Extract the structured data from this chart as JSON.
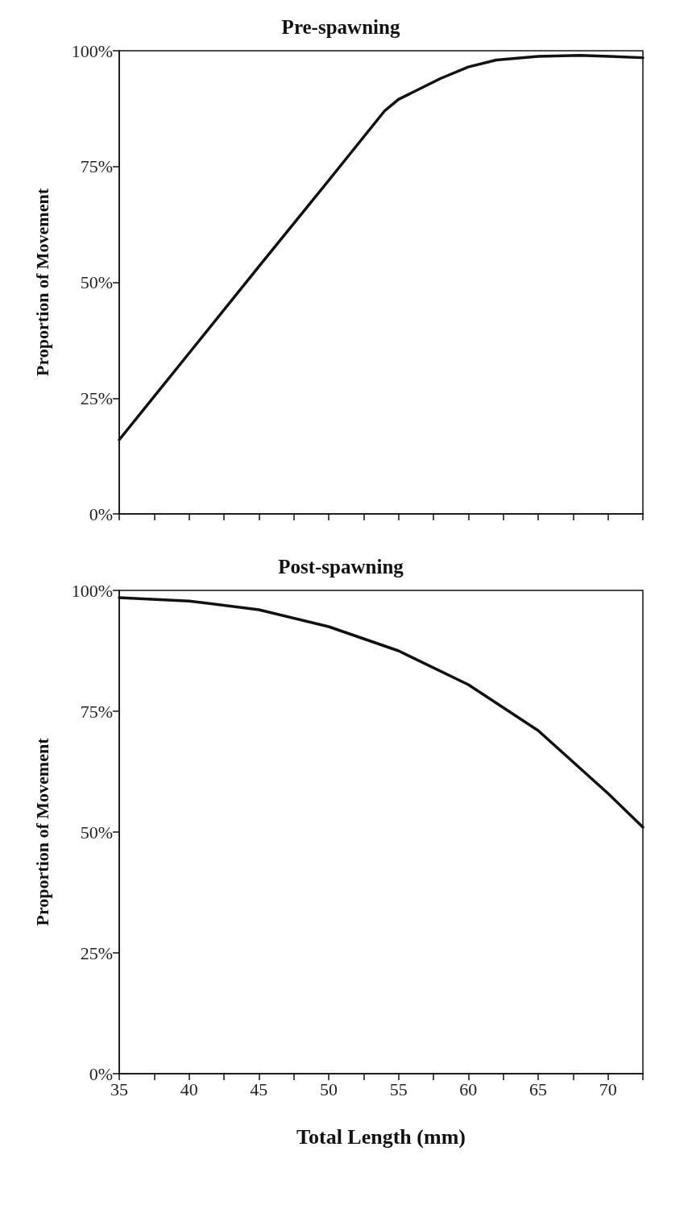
{
  "chart_data": [
    {
      "type": "line",
      "title": "Pre-spawning",
      "ylabel": "Proportion of Movement",
      "x": [
        35,
        40,
        45,
        50,
        54,
        55,
        56,
        58,
        60,
        62,
        65,
        68,
        72.5
      ],
      "series": [
        {
          "color": "#111111",
          "values": [
            16,
            34.7,
            53.4,
            72,
            87,
            89.5,
            91,
            94,
            96.5,
            98,
            98.8,
            99,
            98.5
          ]
        }
      ],
      "xlim": [
        35,
        72.5
      ],
      "xticks": [
        {
          "value": 35,
          "label": null
        },
        {
          "value": 37.5,
          "label": null
        },
        {
          "value": 40,
          "label": null
        },
        {
          "value": 42.5,
          "label": null
        },
        {
          "value": 45,
          "label": null
        },
        {
          "value": 47.5,
          "label": null
        },
        {
          "value": 50,
          "label": null
        },
        {
          "value": 52.5,
          "label": null
        },
        {
          "value": 55,
          "label": null
        },
        {
          "value": 57.5,
          "label": null
        },
        {
          "value": 60,
          "label": null
        },
        {
          "value": 62.5,
          "label": null
        },
        {
          "value": 65,
          "label": null
        },
        {
          "value": 67.5,
          "label": null
        },
        {
          "value": 70,
          "label": null
        },
        {
          "value": 72.5,
          "label": null
        }
      ],
      "ylim": [
        0,
        100
      ],
      "yticks": [
        {
          "value": 0,
          "label": "0%"
        },
        {
          "value": 25,
          "label": "25%"
        },
        {
          "value": 50,
          "label": "50%"
        },
        {
          "value": 75,
          "label": "75%"
        },
        {
          "value": 100,
          "label": "100%"
        }
      ],
      "tick_labels": "y",
      "grid": false,
      "marker": "none",
      "line_style": "solid"
    },
    {
      "type": "line",
      "title": "Post-spawning",
      "xlabel": "Total Length (mm)",
      "ylabel": "Proportion of Movement",
      "x": [
        35,
        40,
        45,
        50,
        55,
        60,
        65,
        70,
        72.5
      ],
      "series": [
        {
          "color": "#111111",
          "values": [
            98.5,
            97.8,
            96,
            92.5,
            87.5,
            80.5,
            71,
            58,
            51
          ]
        }
      ],
      "xlim": [
        35,
        72.5
      ],
      "xticks": [
        35,
        {
          "value": 37.5,
          "label": null
        },
        40,
        {
          "value": 42.5,
          "label": null
        },
        45,
        {
          "value": 47.5,
          "label": null
        },
        50,
        {
          "value": 52.5,
          "label": null
        },
        55,
        {
          "value": 57.5,
          "label": null
        },
        60,
        {
          "value": 62.5,
          "label": null
        },
        65,
        {
          "value": 67.5,
          "label": null
        },
        70,
        {
          "value": 72.5,
          "label": null
        }
      ],
      "ylim": [
        0,
        100
      ],
      "yticks": [
        {
          "value": 0,
          "label": "0%"
        },
        {
          "value": 25,
          "label": "25%"
        },
        {
          "value": 50,
          "label": "50%"
        },
        {
          "value": 75,
          "label": "75%"
        },
        {
          "value": 100,
          "label": "100%"
        }
      ],
      "grid": false,
      "marker": "none",
      "line_style": "solid"
    }
  ]
}
